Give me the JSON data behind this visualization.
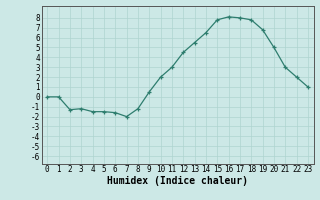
{
  "x": [
    0,
    1,
    2,
    3,
    4,
    5,
    6,
    7,
    8,
    9,
    10,
    11,
    12,
    13,
    14,
    15,
    16,
    17,
    18,
    19,
    20,
    21,
    22,
    23
  ],
  "y": [
    0,
    0,
    -1.3,
    -1.2,
    -1.5,
    -1.5,
    -1.6,
    -2.0,
    -1.2,
    0.5,
    2.0,
    3.0,
    4.5,
    5.5,
    6.5,
    7.8,
    8.1,
    8.0,
    7.8,
    6.8,
    5.0,
    3.0,
    2.0,
    1.0
  ],
  "xlabel": "Humidex (Indice chaleur)",
  "xticks": [
    0,
    1,
    2,
    3,
    4,
    5,
    6,
    7,
    8,
    9,
    10,
    11,
    12,
    13,
    14,
    15,
    16,
    17,
    18,
    19,
    20,
    21,
    22,
    23
  ],
  "yticks": [
    8,
    7,
    6,
    5,
    4,
    3,
    2,
    1,
    0,
    -1,
    -2,
    -3,
    -4,
    -5,
    -6
  ],
  "ylim": [
    -6.8,
    9.2
  ],
  "xlim": [
    -0.5,
    23.5
  ],
  "line_color": "#2e7d6e",
  "marker": "+",
  "bg_color": "#cce8e6",
  "grid_color": "#afd4d0",
  "tick_fontsize": 5.5,
  "label_fontsize": 7
}
